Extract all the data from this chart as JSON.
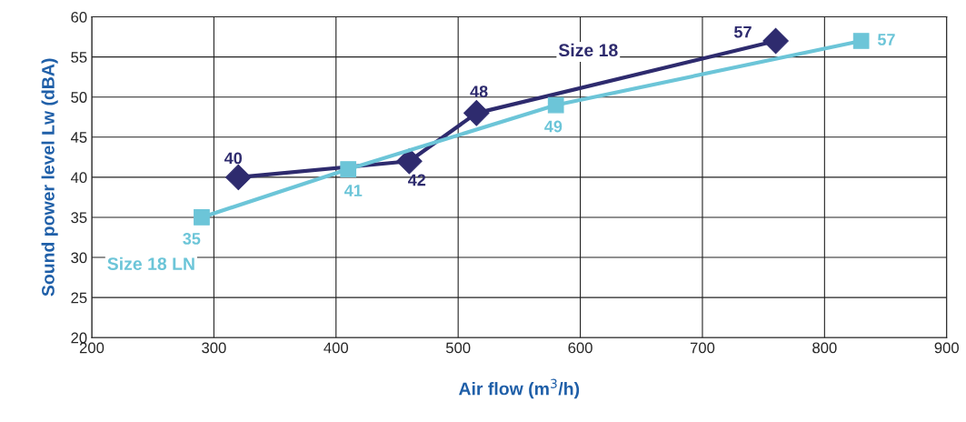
{
  "chart_data": {
    "type": "line",
    "xlabel": "Air flow (m$^{3}$/h)",
    "ylabel": "Sound power level Lw (dBA)",
    "series": [
      {
        "name": "Size 18",
        "color": "#2e2b6e",
        "marker": "diamond",
        "x": [
          320,
          460,
          515,
          760
        ],
        "values": [
          40,
          42,
          48,
          57
        ]
      },
      {
        "name": "Size 18 LN",
        "color": "#6cc5d8",
        "marker": "square",
        "x": [
          290,
          410,
          580,
          830
        ],
        "values": [
          35,
          41,
          49,
          57
        ]
      }
    ],
    "xlim": [
      200,
      900
    ],
    "xticks": [
      200,
      300,
      400,
      500,
      600,
      700,
      800,
      900
    ],
    "ylim": [
      20,
      60
    ],
    "yticks": [
      20,
      25,
      30,
      35,
      40,
      45,
      50,
      55,
      60
    ],
    "grid": true,
    "data_labels": true,
    "line_style": "solid"
  }
}
